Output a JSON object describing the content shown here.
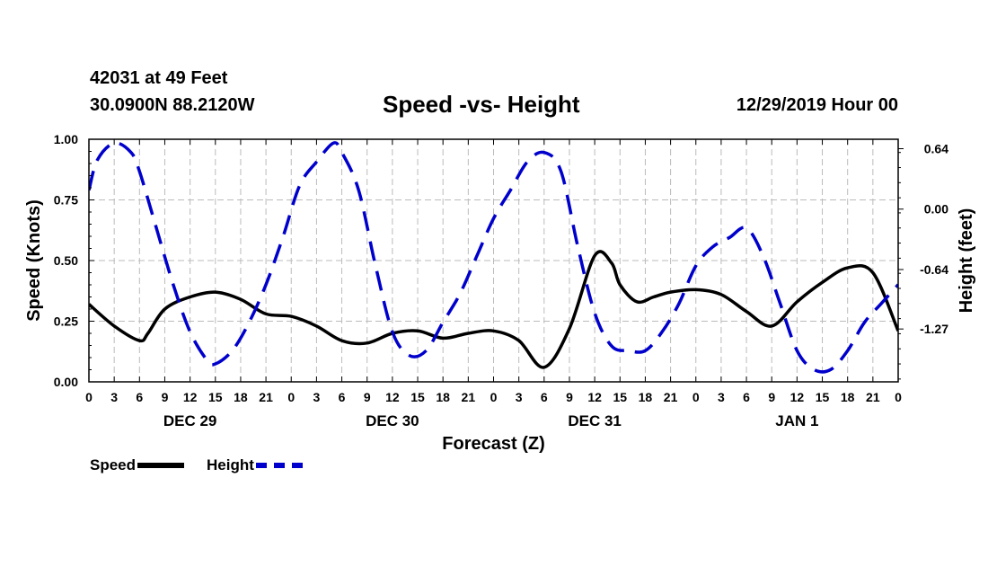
{
  "header": {
    "station": "42031 at 49 Feet",
    "coords": "30.0900N 88.2120W",
    "title": "Speed -vs- Height",
    "datetime": "12/29/2019 Hour 00"
  },
  "chart_data": {
    "type": "line",
    "title": "Speed -vs- Height",
    "xlabel": "Forecast (Z)",
    "ylabel": "Speed (Knots)",
    "y2label": "Height (feet)",
    "x_tick_labels": [
      "0",
      "3",
      "6",
      "9",
      "12",
      "15",
      "18",
      "21",
      "0",
      "3",
      "6",
      "9",
      "12",
      "15",
      "18",
      "21",
      "0",
      "3",
      "6",
      "9",
      "12",
      "15",
      "18",
      "21",
      "0",
      "3",
      "6",
      "9",
      "12",
      "15",
      "18",
      "21",
      "0"
    ],
    "day_labels": [
      {
        "label": "DEC 29",
        "hour": 12
      },
      {
        "label": "DEC 30",
        "hour": 36
      },
      {
        "label": "DEC 31",
        "hour": 60
      },
      {
        "label": "JAN 1",
        "hour": 84
      }
    ],
    "xlim": [
      0,
      96
    ],
    "ylim": [
      0,
      1.0
    ],
    "y_ticks": [
      "0.00",
      "0.25",
      "0.50",
      "0.75",
      "1.00"
    ],
    "y2lim": [
      -1.83,
      0.74
    ],
    "y2_ticks": [
      0.64,
      0.0,
      -0.64,
      -1.27
    ],
    "y2_tick_labels": [
      "0.64",
      "0.00",
      "-0.64",
      "-1.27"
    ],
    "grid": true,
    "legend": [
      {
        "name": "Speed",
        "style": "solid",
        "color": "#000000"
      },
      {
        "name": "Height",
        "style": "dashed",
        "color": "#0000cc"
      }
    ],
    "series": [
      {
        "name": "Speed",
        "axis": "left",
        "color": "#000000",
        "x": [
          0,
          3,
          6,
          7,
          9,
          12,
          15,
          18,
          21,
          24,
          27,
          30,
          33,
          36,
          39,
          42,
          45,
          48,
          51,
          54,
          57,
          60,
          62,
          63,
          65,
          67,
          69,
          72,
          75,
          78,
          81,
          84,
          87,
          90,
          93,
          96
        ],
        "values": [
          0.32,
          0.23,
          0.17,
          0.2,
          0.3,
          0.35,
          0.37,
          0.34,
          0.28,
          0.27,
          0.23,
          0.17,
          0.16,
          0.2,
          0.21,
          0.18,
          0.2,
          0.21,
          0.17,
          0.06,
          0.22,
          0.52,
          0.49,
          0.4,
          0.33,
          0.35,
          0.37,
          0.38,
          0.36,
          0.29,
          0.23,
          0.33,
          0.41,
          0.47,
          0.45,
          0.21
        ]
      },
      {
        "name": "Height",
        "axis": "right",
        "color": "#0000cc",
        "x": [
          0,
          1,
          3,
          5,
          6,
          8,
          10,
          12,
          14,
          15,
          17,
          19,
          21,
          23,
          25,
          27,
          29,
          30,
          32,
          34,
          36,
          38,
          40,
          42,
          44,
          46,
          48,
          50,
          52,
          54,
          56,
          58,
          60,
          62,
          64,
          66,
          68,
          70,
          72,
          74,
          76,
          78,
          80,
          82,
          84,
          86,
          88,
          90,
          92,
          94,
          96
        ],
        "values": [
          0.2,
          0.52,
          0.7,
          0.6,
          0.4,
          -0.2,
          -0.8,
          -1.3,
          -1.6,
          -1.64,
          -1.5,
          -1.2,
          -0.8,
          -0.3,
          0.25,
          0.5,
          0.7,
          0.6,
          0.2,
          -0.6,
          -1.3,
          -1.55,
          -1.5,
          -1.2,
          -0.9,
          -0.5,
          -0.1,
          0.2,
          0.5,
          0.6,
          0.4,
          -0.4,
          -1.1,
          -1.45,
          -1.5,
          -1.5,
          -1.3,
          -1.0,
          -0.6,
          -0.4,
          -0.3,
          -0.2,
          -0.5,
          -1.0,
          -1.5,
          -1.7,
          -1.7,
          -1.5,
          -1.2,
          -1.0,
          -0.8
        ]
      }
    ]
  }
}
